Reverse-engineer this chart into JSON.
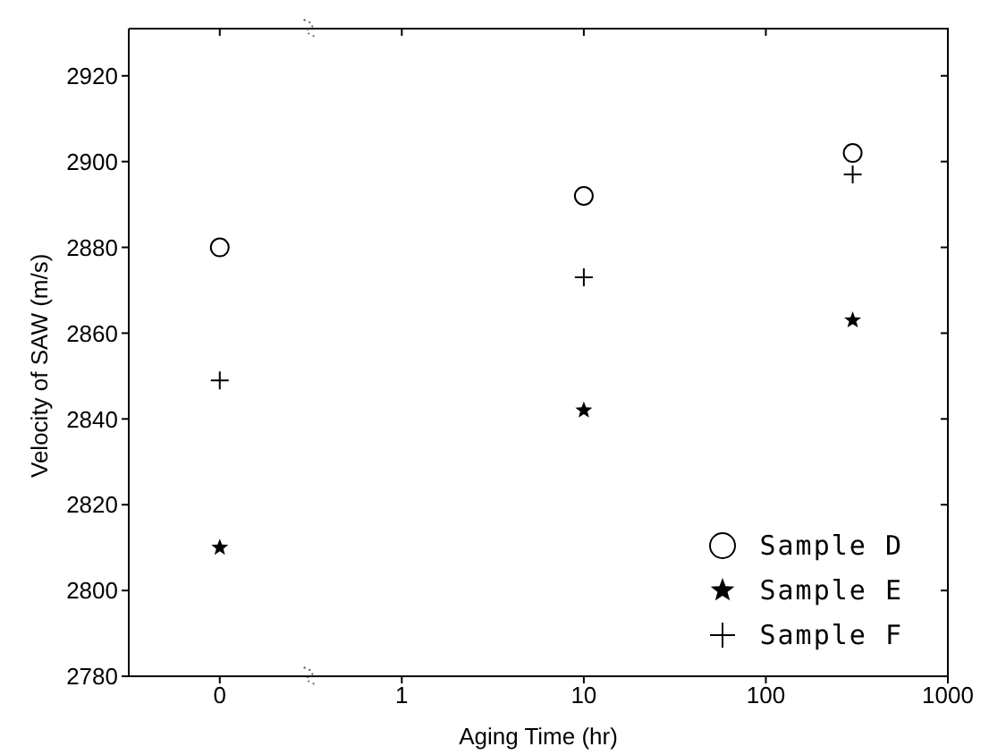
{
  "chart_data": {
    "type": "scatter",
    "xlabel": "Aging Time (hr)",
    "ylabel": "Velocity of SAW (m/s)",
    "x": [
      0.1,
      10,
      300
    ],
    "series": [
      {
        "name": "Sample D",
        "color": "#000000",
        "marker": "circle",
        "values": [
          2880,
          2892,
          2902
        ]
      },
      {
        "name": "Sample E",
        "color": "#000000",
        "marker": "star",
        "values": [
          2810,
          2842,
          2863
        ]
      },
      {
        "name": "Sample F",
        "color": "#000000",
        "marker": "cross",
        "values": [
          2849,
          2873,
          2897
        ]
      }
    ],
    "log": "x",
    "xlim": [
      0.03162,
      1000
    ],
    "xticks": [
      {
        "value": 0.1,
        "label": "0"
      },
      1,
      10,
      100,
      1000
    ],
    "ylim": [
      2780,
      2931
    ],
    "yticks": [
      2780,
      2800,
      2820,
      2840,
      2860,
      2880,
      2900,
      2920
    ],
    "legend": "bottom right"
  }
}
